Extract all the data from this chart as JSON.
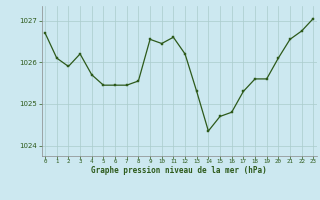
{
  "x": [
    0,
    1,
    2,
    3,
    4,
    5,
    6,
    7,
    8,
    9,
    10,
    11,
    12,
    13,
    14,
    15,
    16,
    17,
    18,
    19,
    20,
    21,
    22,
    23
  ],
  "y": [
    1026.7,
    1026.1,
    1025.9,
    1026.2,
    1025.7,
    1025.45,
    1025.45,
    1025.45,
    1025.55,
    1026.55,
    1026.45,
    1026.6,
    1026.2,
    1025.3,
    1024.35,
    1024.7,
    1024.8,
    1025.3,
    1025.6,
    1025.6,
    1026.1,
    1026.55,
    1026.75,
    1027.05
  ],
  "line_color": "#2d5a1b",
  "marker_color": "#2d5a1b",
  "bg_color": "#cce8f0",
  "grid_color": "#aacccc",
  "xlabel": "Graphe pression niveau de la mer (hPa)",
  "xlabel_color": "#2d5a1b",
  "yticks": [
    1024,
    1025,
    1026,
    1027
  ],
  "xticks": [
    0,
    1,
    2,
    3,
    4,
    5,
    6,
    7,
    8,
    9,
    10,
    11,
    12,
    13,
    14,
    15,
    16,
    17,
    18,
    19,
    20,
    21,
    22,
    23
  ],
  "ylim": [
    1023.75,
    1027.35
  ],
  "xlim": [
    -0.3,
    23.3
  ],
  "tick_color": "#2d5a1b",
  "spine_color": "#888888"
}
